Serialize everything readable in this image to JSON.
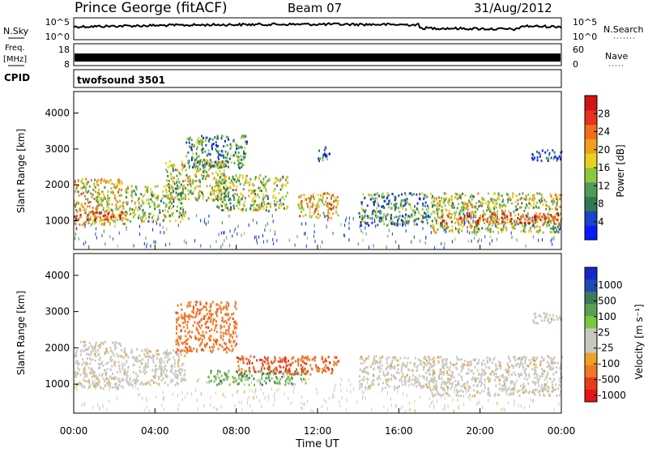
{
  "header": {
    "station": "Prince George (fitACF)",
    "beam": "Beam 07",
    "date": "31/Aug/2012"
  },
  "panels": {
    "nsky": {
      "label": "N.Sky",
      "right_label": "N.Search",
      "left_ticks": [
        "10^5",
        "10^0"
      ],
      "right_ticks": [
        "10^5",
        "10^0"
      ]
    },
    "freq": {
      "label_line1": "Freq.",
      "label_line2": "[MHz]",
      "right_label": "Nave",
      "left_ticks": [
        "18",
        "8"
      ],
      "right_ticks": [
        "60",
        "0"
      ]
    },
    "cpid": {
      "label": "CPID",
      "value": "twofsound 3501"
    }
  },
  "time_axis": {
    "label": "Time UT",
    "ticks": [
      "00:00",
      "04:00",
      "08:00",
      "12:00",
      "16:00",
      "20:00",
      "00:00"
    ]
  },
  "colors": {
    "power_scale": [
      "#0a1aff",
      "#1a45c8",
      "#2d7a4e",
      "#4f9c5a",
      "#8cc83c",
      "#e6d21e",
      "#f0a01e",
      "#f06e1e",
      "#e6321e",
      "#d21414"
    ],
    "velocity_scale": [
      "#1428c8",
      "#1e4ab4",
      "#3c7a5a",
      "#5aa050",
      "#78c83c",
      "#c8c8c0",
      "#c8c8c0",
      "#f0a028",
      "#f07828",
      "#e63c1e",
      "#e61414"
    ]
  },
  "chart_data": [
    {
      "type": "heatmap",
      "name": "power",
      "ylabel": "Slant Range [km]",
      "ylim": [
        200,
        4600
      ],
      "yticks": [
        1000,
        2000,
        3000,
        4000
      ],
      "xlim": [
        0,
        24
      ],
      "colorbar": {
        "label": "Power [dB]",
        "range": [
          0,
          32
        ],
        "ticks": [
          4,
          8,
          12,
          16,
          20,
          24,
          28
        ]
      },
      "bands": [
        {
          "t0": 0,
          "t1": 2.5,
          "r0": 900,
          "r1": 2200,
          "p": 18
        },
        {
          "t0": 0,
          "t1": 2.5,
          "r0": 1050,
          "r1": 1300,
          "p": 27
        },
        {
          "t0": 2.5,
          "t1": 5.5,
          "r0": 1000,
          "r1": 2000,
          "p": 14
        },
        {
          "t0": 4.5,
          "t1": 7.5,
          "r0": 1600,
          "r1": 2700,
          "p": 15
        },
        {
          "t0": 5.5,
          "t1": 8.5,
          "r0": 2500,
          "r1": 3400,
          "p": 10
        },
        {
          "t0": 7,
          "t1": 10.5,
          "r0": 1300,
          "r1": 2300,
          "p": 14
        },
        {
          "t0": 11,
          "t1": 13,
          "r0": 1100,
          "r1": 1800,
          "p": 20
        },
        {
          "t0": 12,
          "t1": 12.6,
          "r0": 2700,
          "r1": 3100,
          "p": 6
        },
        {
          "t0": 14,
          "t1": 17.5,
          "r0": 900,
          "r1": 1800,
          "p": 10
        },
        {
          "t0": 17.5,
          "t1": 24,
          "r0": 700,
          "r1": 1800,
          "p": 16
        },
        {
          "t0": 18,
          "t1": 24,
          "r0": 950,
          "r1": 1250,
          "p": 26
        },
        {
          "t0": 22.5,
          "t1": 24,
          "r0": 2700,
          "r1": 3000,
          "p": 6
        }
      ]
    },
    {
      "type": "heatmap",
      "name": "velocity",
      "ylabel": "Slant Range [km]",
      "ylim": [
        200,
        4600
      ],
      "yticks": [
        1000,
        2000,
        3000,
        4000
      ],
      "xlim": [
        0,
        24
      ],
      "colorbar": {
        "label": "Velocity [m s⁻¹]",
        "ticks": [
          "1000",
          "500",
          "100",
          "25",
          "-25",
          "-100",
          "-500",
          "-1000"
        ]
      },
      "bands": [
        {
          "t0": 0,
          "t1": 2.5,
          "r0": 900,
          "r1": 2200,
          "v": 0
        },
        {
          "t0": 2.5,
          "t1": 5.5,
          "r0": 1000,
          "r1": 2000,
          "v": 0
        },
        {
          "t0": 5,
          "t1": 8,
          "r0": 1900,
          "r1": 3300,
          "v": -250
        },
        {
          "t0": 6.5,
          "t1": 11.5,
          "r0": 1000,
          "r1": 1400,
          "v": 60
        },
        {
          "t0": 8,
          "t1": 13,
          "r0": 1300,
          "r1": 1800,
          "v": -300
        },
        {
          "t0": 14,
          "t1": 17.5,
          "r0": 900,
          "r1": 1800,
          "v": 0
        },
        {
          "t0": 17.5,
          "t1": 24,
          "r0": 700,
          "r1": 1800,
          "v": 0
        },
        {
          "t0": 22.5,
          "t1": 24,
          "r0": 2700,
          "r1": 3000,
          "v": 0
        }
      ]
    }
  ]
}
